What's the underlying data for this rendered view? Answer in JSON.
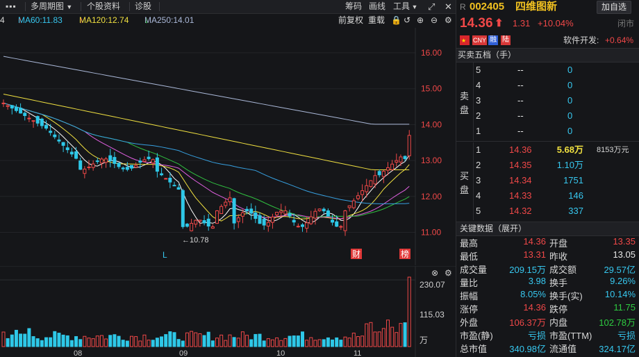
{
  "toolbar": {
    "menu_icon": "menu-icon",
    "multi_period": "多周期图",
    "stock_info": "个股资料",
    "diagnose": "诊股",
    "chips": "筹码",
    "draw": "画线",
    "tools": "工具",
    "back_icon": "undo-icon",
    "expand_icon": "expand-icon",
    "close_icon": "close-icon"
  },
  "ma_line": {
    "prefix": "4",
    "ma60": "MA60:11.83",
    "ma120": "MA120:12.74",
    "ma250": "MA250:14.01",
    "fq": "前复权",
    "overlay": "重载"
  },
  "chart": {
    "price_ticks": [
      "16.00",
      "15.00",
      "14.00",
      "13.00",
      "12.00",
      "11.00"
    ],
    "low_marker": "←10.78",
    "L_marker": "L",
    "cai_badge": "财",
    "bang_badge": "榜",
    "vol_ticks": [
      "230.07",
      "115.03",
      "万"
    ],
    "months": [
      "08",
      "09",
      "10",
      "11"
    ]
  },
  "stock": {
    "prefix": "R",
    "code": "002405",
    "name": "四维图新",
    "add_watch": "加自选",
    "price": "14.36",
    "change": "1.31",
    "change_pct": "+10.04%",
    "status": "闭市",
    "tags": [
      "CNY",
      "融",
      "陆"
    ],
    "sector_label": "软件开发:",
    "sector_change": "+0.64%"
  },
  "orderbook": {
    "title": "买卖五档（手）",
    "sell_label": [
      "卖",
      "盘"
    ],
    "buy_label": [
      "买",
      "盘"
    ],
    "sell": [
      {
        "lvl": "5",
        "price": "--",
        "vol": "0"
      },
      {
        "lvl": "4",
        "price": "--",
        "vol": "0"
      },
      {
        "lvl": "3",
        "price": "--",
        "vol": "0"
      },
      {
        "lvl": "2",
        "price": "--",
        "vol": "0"
      },
      {
        "lvl": "1",
        "price": "--",
        "vol": "0"
      }
    ],
    "buy": [
      {
        "lvl": "1",
        "price": "14.36",
        "vol": "5.68万",
        "extra": "8153万元"
      },
      {
        "lvl": "2",
        "price": "14.35",
        "vol": "1.10万",
        "extra": ""
      },
      {
        "lvl": "3",
        "price": "14.34",
        "vol": "1751",
        "extra": ""
      },
      {
        "lvl": "4",
        "price": "14.33",
        "vol": "146",
        "extra": ""
      },
      {
        "lvl": "5",
        "price": "14.32",
        "vol": "337",
        "extra": ""
      }
    ]
  },
  "keydata": {
    "title": "关键数据（展开）",
    "rows": [
      [
        {
          "k": "最高",
          "v": "14.36",
          "c": "red"
        },
        {
          "k": "开盘",
          "v": "13.35",
          "c": "red"
        }
      ],
      [
        {
          "k": "最低",
          "v": "13.31",
          "c": "red"
        },
        {
          "k": "昨收",
          "v": "13.05",
          "c": "white"
        }
      ],
      [
        {
          "k": "成交量",
          "v": "209.15万",
          "c": "cyan"
        },
        {
          "k": "成交额",
          "v": "29.57亿",
          "c": "cyan"
        }
      ],
      [
        {
          "k": "量比",
          "v": "3.98",
          "c": "cyan"
        },
        {
          "k": "换手",
          "v": "9.26%",
          "c": "cyan"
        }
      ],
      [
        {
          "k": "振幅",
          "v": "8.05%",
          "c": "cyan"
        },
        {
          "k": "换手(实)",
          "v": "10.14%",
          "c": "cyan"
        }
      ],
      [
        {
          "k": "涨停",
          "v": "14.36",
          "c": "red"
        },
        {
          "k": "跌停",
          "v": "11.75",
          "c": "green"
        }
      ],
      [
        {
          "k": "外盘",
          "v": "106.37万",
          "c": "red"
        },
        {
          "k": "内盘",
          "v": "102.78万",
          "c": "green"
        }
      ],
      [
        {
          "k": "市盈(静)",
          "v": "亏损",
          "c": "cyan"
        },
        {
          "k": "市盈(TTM)",
          "v": "亏损",
          "c": "cyan"
        }
      ],
      [
        {
          "k": "总市值",
          "v": "340.98亿",
          "c": "cyan"
        },
        {
          "k": "流通值",
          "v": "324.17亿",
          "c": "cyan"
        }
      ]
    ]
  },
  "colors": {
    "up": "#f04848",
    "down": "#2ecc40",
    "accent": "#37c8f0"
  }
}
